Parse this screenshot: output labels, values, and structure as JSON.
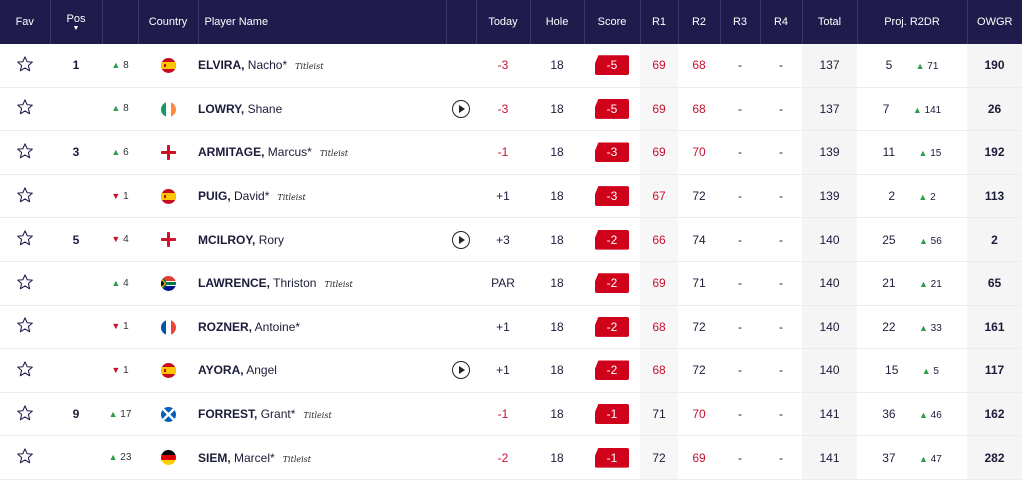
{
  "header": {
    "fav": "Fav",
    "pos": "Pos",
    "country": "Country",
    "player_name": "Player Name",
    "today": "Today",
    "hole": "Hole",
    "score": "Score",
    "r1": "R1",
    "r2": "R2",
    "r3": "R3",
    "r4": "R4",
    "total": "Total",
    "proj": "Proj. R2DR",
    "owgr": "OWGR"
  },
  "rows": [
    {
      "pos": "1",
      "move_dir": "up",
      "move": "8",
      "flag": "esp",
      "surname": "ELVIRA,",
      "first": "Nacho*",
      "sponsor": "Titleist",
      "play": false,
      "today": "-3",
      "today_red": true,
      "hole": "18",
      "score": "-5",
      "r1": "69",
      "r1_red": true,
      "r2": "68",
      "r2_red": true,
      "r3": "-",
      "r4": "-",
      "total": "137",
      "proj": "5",
      "proj_dir": "up",
      "proj_move": "71",
      "owgr": "190",
      "group": true
    },
    {
      "pos": "",
      "move_dir": "up",
      "move": "8",
      "flag": "irl",
      "surname": "LOWRY,",
      "first": "Shane",
      "sponsor": "",
      "play": true,
      "today": "-3",
      "today_red": true,
      "hole": "18",
      "score": "-5",
      "r1": "69",
      "r1_red": true,
      "r2": "68",
      "r2_red": true,
      "r3": "-",
      "r4": "-",
      "total": "137",
      "proj": "7",
      "proj_dir": "up",
      "proj_move": "141",
      "owgr": "26",
      "group": false
    },
    {
      "pos": "3",
      "move_dir": "up",
      "move": "6",
      "flag": "eng",
      "surname": "ARMITAGE,",
      "first": "Marcus*",
      "sponsor": "Titleist",
      "play": false,
      "today": "-1",
      "today_red": true,
      "hole": "18",
      "score": "-3",
      "r1": "69",
      "r1_red": true,
      "r2": "70",
      "r2_red": true,
      "r3": "-",
      "r4": "-",
      "total": "139",
      "proj": "11",
      "proj_dir": "up",
      "proj_move": "15",
      "owgr": "192",
      "group": true
    },
    {
      "pos": "",
      "move_dir": "down",
      "move": "1",
      "flag": "esp",
      "surname": "PUIG,",
      "first": "David*",
      "sponsor": "Titleist",
      "play": false,
      "today": "+1",
      "today_red": false,
      "hole": "18",
      "score": "-3",
      "r1": "67",
      "r1_red": true,
      "r2": "72",
      "r2_red": false,
      "r3": "-",
      "r4": "-",
      "total": "139",
      "proj": "2",
      "proj_dir": "up",
      "proj_move": "2",
      "owgr": "113",
      "group": false
    },
    {
      "pos": "5",
      "move_dir": "down",
      "move": "4",
      "flag": "nir",
      "surname": "MCILROY,",
      "first": "Rory",
      "sponsor": "",
      "play": true,
      "today": "+3",
      "today_red": false,
      "hole": "18",
      "score": "-2",
      "r1": "66",
      "r1_red": true,
      "r2": "74",
      "r2_red": false,
      "r3": "-",
      "r4": "-",
      "total": "140",
      "proj": "25",
      "proj_dir": "up",
      "proj_move": "56",
      "owgr": "2",
      "group": true
    },
    {
      "pos": "",
      "move_dir": "up",
      "move": "4",
      "flag": "rsa",
      "surname": "LAWRENCE,",
      "first": "Thriston",
      "sponsor": "Titleist",
      "play": false,
      "today": "PAR",
      "today_red": false,
      "hole": "18",
      "score": "-2",
      "r1": "69",
      "r1_red": true,
      "r2": "71",
      "r2_red": false,
      "r3": "-",
      "r4": "-",
      "total": "140",
      "proj": "21",
      "proj_dir": "up",
      "proj_move": "21",
      "owgr": "65",
      "group": false
    },
    {
      "pos": "",
      "move_dir": "down",
      "move": "1",
      "flag": "fra",
      "surname": "ROZNER,",
      "first": "Antoine*",
      "sponsor": "",
      "play": false,
      "today": "+1",
      "today_red": false,
      "hole": "18",
      "score": "-2",
      "r1": "68",
      "r1_red": true,
      "r2": "72",
      "r2_red": false,
      "r3": "-",
      "r4": "-",
      "total": "140",
      "proj": "22",
      "proj_dir": "up",
      "proj_move": "33",
      "owgr": "161",
      "group": false
    },
    {
      "pos": "",
      "move_dir": "down",
      "move": "1",
      "flag": "esp",
      "surname": "AYORA,",
      "first": "Angel",
      "sponsor": "",
      "play": true,
      "today": "+1",
      "today_red": false,
      "hole": "18",
      "score": "-2",
      "r1": "68",
      "r1_red": true,
      "r2": "72",
      "r2_red": false,
      "r3": "-",
      "r4": "-",
      "total": "140",
      "proj": "15",
      "proj_dir": "up",
      "proj_move": "5",
      "owgr": "117",
      "group": false
    },
    {
      "pos": "9",
      "move_dir": "up",
      "move": "17",
      "flag": "sco",
      "surname": "FORREST,",
      "first": "Grant*",
      "sponsor": "Titleist",
      "play": false,
      "today": "-1",
      "today_red": true,
      "hole": "18",
      "score": "-1",
      "r1": "71",
      "r1_red": false,
      "r2": "70",
      "r2_red": true,
      "r3": "-",
      "r4": "-",
      "total": "141",
      "proj": "36",
      "proj_dir": "up",
      "proj_move": "46",
      "owgr": "162",
      "group": true
    },
    {
      "pos": "",
      "move_dir": "up",
      "move": "23",
      "flag": "ger",
      "surname": "SIEM,",
      "first": "Marcel*",
      "sponsor": "Titleist",
      "play": false,
      "today": "-2",
      "today_red": true,
      "hole": "18",
      "score": "-1",
      "r1": "72",
      "r1_red": false,
      "r2": "69",
      "r2_red": true,
      "r3": "-",
      "r4": "-",
      "total": "141",
      "proj": "37",
      "proj_dir": "up",
      "proj_move": "47",
      "owgr": "282",
      "group": false
    }
  ],
  "colors": {
    "header_bg": "#1f1c4d",
    "score_red": "#d0021b",
    "up": "#2e9e47",
    "down": "#c8102e"
  }
}
